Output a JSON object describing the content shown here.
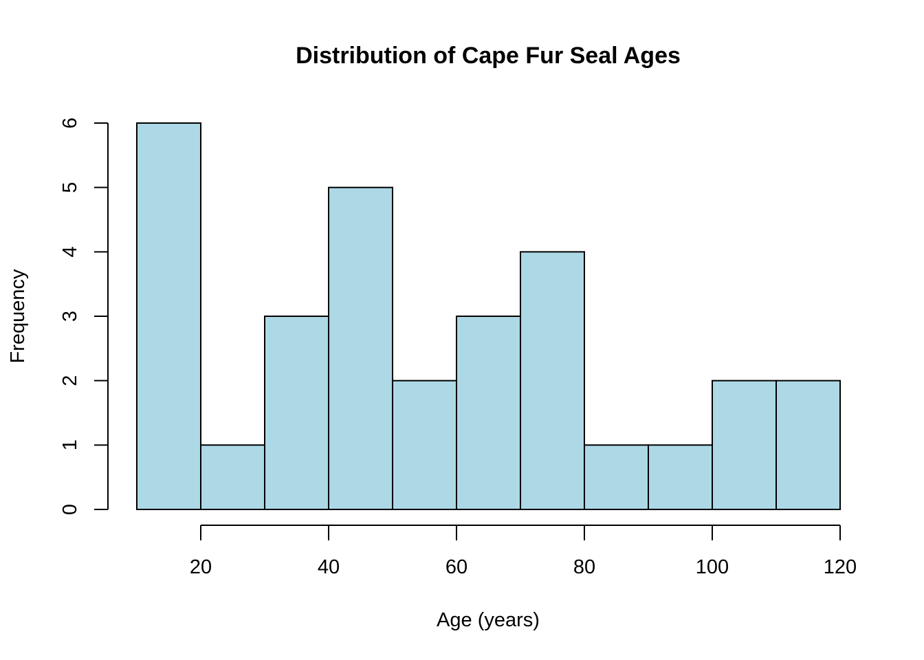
{
  "chart_data": {
    "type": "bar",
    "title": "Distribution of Cape Fur Seal Ages",
    "xlabel": "Age (years)",
    "ylabel": "Frequency",
    "bins": [
      {
        "from": 10,
        "to": 20,
        "count": 6
      },
      {
        "from": 20,
        "to": 30,
        "count": 1
      },
      {
        "from": 30,
        "to": 40,
        "count": 3
      },
      {
        "from": 40,
        "to": 50,
        "count": 5
      },
      {
        "from": 50,
        "to": 60,
        "count": 2
      },
      {
        "from": 60,
        "to": 70,
        "count": 3
      },
      {
        "from": 70,
        "to": 80,
        "count": 4
      },
      {
        "from": 80,
        "to": 90,
        "count": 1
      },
      {
        "from": 90,
        "to": 100,
        "count": 1
      },
      {
        "from": 100,
        "to": 110,
        "count": 2
      },
      {
        "from": 110,
        "to": 120,
        "count": 2
      }
    ],
    "xlim": [
      10,
      120
    ],
    "ylim": [
      0,
      6
    ],
    "x_ticks": [
      "20",
      "40",
      "60",
      "80",
      "100",
      "120"
    ],
    "y_ticks": [
      "0",
      "1",
      "2",
      "3",
      "4",
      "5",
      "6"
    ],
    "bar_color": "#add8e6",
    "grid": false,
    "legend": "none"
  }
}
